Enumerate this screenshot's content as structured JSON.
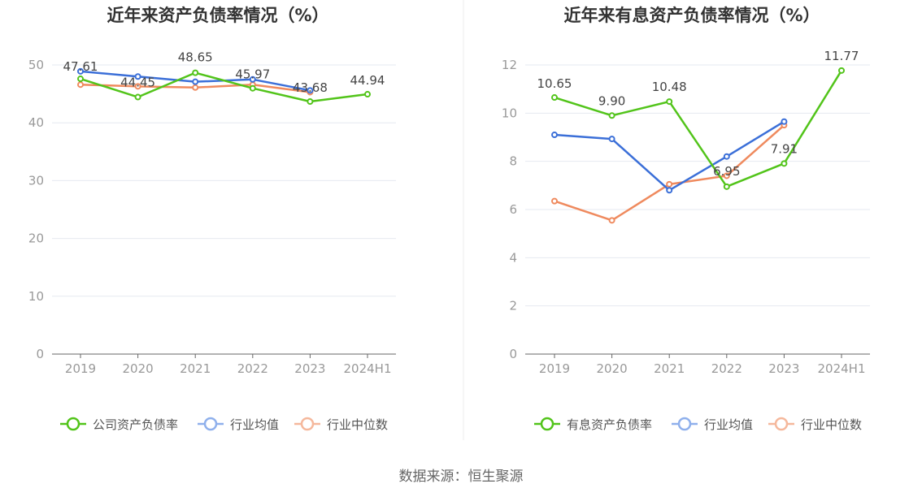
{
  "source": "数据来源：恒生聚源",
  "chart_data": [
    {
      "type": "line",
      "title": "近年来资产负债率情况（%）",
      "categories": [
        "2019",
        "2020",
        "2021",
        "2022",
        "2023",
        "2024H1"
      ],
      "ylim": [
        0,
        50
      ],
      "yticks": [
        0,
        10,
        20,
        30,
        40,
        50
      ],
      "grid": true,
      "legend_position": "bottom",
      "series": [
        {
          "name": "公司资产负债率",
          "color": "#52c41a",
          "values": [
            47.61,
            44.45,
            48.65,
            45.97,
            43.68,
            44.94
          ],
          "labels": true
        },
        {
          "name": "行业均值",
          "color": "#3b6fd8",
          "values": [
            48.9,
            48.0,
            47.1,
            47.5,
            45.6,
            null
          ],
          "labels": false
        },
        {
          "name": "行业中位数",
          "color": "#ef8a5e",
          "values": [
            46.6,
            46.3,
            46.1,
            46.6,
            45.3,
            null
          ],
          "labels": false
        }
      ]
    },
    {
      "type": "line",
      "title": "近年来有息资产负债率情况（%）",
      "categories": [
        "2019",
        "2020",
        "2021",
        "2022",
        "2023",
        "2024H1"
      ],
      "ylim": [
        0,
        12
      ],
      "yticks": [
        0,
        2,
        4,
        6,
        8,
        10,
        12
      ],
      "grid": true,
      "legend_position": "bottom",
      "series": [
        {
          "name": "有息资产负债率",
          "color": "#52c41a",
          "values": [
            10.65,
            9.9,
            10.48,
            6.95,
            7.91,
            11.77
          ],
          "labels": true
        },
        {
          "name": "行业均值",
          "color": "#3b6fd8",
          "values": [
            9.1,
            8.93,
            6.8,
            8.2,
            9.65,
            null
          ],
          "labels": false
        },
        {
          "name": "行业中位数",
          "color": "#ef8a5e",
          "values": [
            6.35,
            5.55,
            7.05,
            7.4,
            9.5,
            null
          ],
          "labels": false
        }
      ]
    }
  ]
}
